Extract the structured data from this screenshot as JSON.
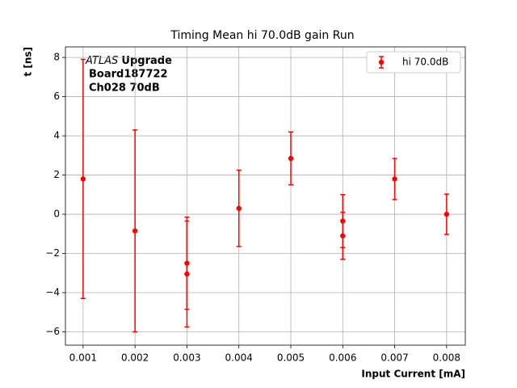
{
  "chart_data": {
    "type": "errorbar",
    "title": "Timing Mean hi 70.0dB gain Run",
    "xlabel": "Input Current [mA]",
    "ylabel": "t [ns]",
    "annotation": {
      "italic": "ATLAS",
      "bold": "Upgrade",
      "lines": [
        "Board187722",
        "Ch028 70dB"
      ]
    },
    "series": [
      {
        "name": "hi 70.0dB",
        "color": "#ff0000",
        "x": [
          0.001,
          0.002,
          0.003,
          0.003,
          0.004,
          0.005,
          0.006,
          0.006,
          0.007,
          0.008
        ],
        "values": [
          1.8,
          -0.85,
          -2.5,
          -3.05,
          0.3,
          2.85,
          -0.35,
          -1.1,
          1.8,
          0
        ],
        "errors": [
          6.1,
          5.15,
          2.35,
          2.7,
          1.95,
          1.35,
          1.35,
          1.2,
          1.05,
          1.03
        ]
      }
    ],
    "xlim": [
      0.00066,
      0.00836
    ],
    "ylim": [
      -6.68,
      8.54
    ],
    "xticks": [
      0.001,
      0.002,
      0.003,
      0.004,
      0.005,
      0.006,
      0.007,
      0.008
    ],
    "yticks": [
      {
        "value": -6,
        "label": "−6"
      },
      {
        "value": -4,
        "label": "−4"
      },
      {
        "value": -2,
        "label": "−2"
      },
      0,
      2,
      4,
      6,
      8
    ],
    "grid": true,
    "legend": "upper right"
  }
}
